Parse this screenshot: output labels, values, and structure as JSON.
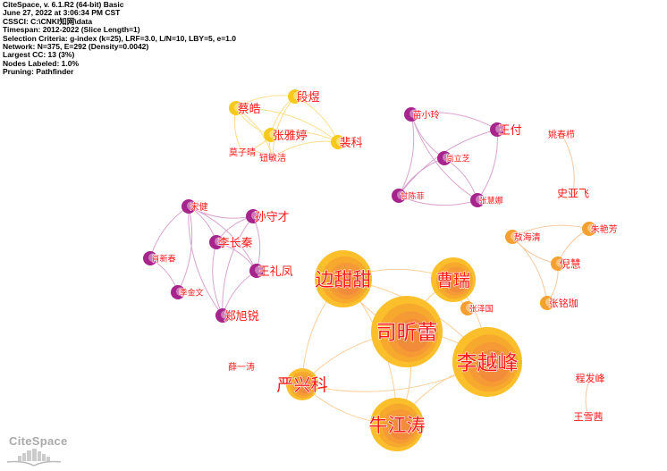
{
  "info": [
    "CiteSpace, v. 6.1.R2 (64-bit) Basic",
    "June 27, 2022 at 3:06:34 PM CST",
    "CSSCI: C:\\CNKI知网\\data",
    "Timespan: 2012-2022 (Slice Length=1)",
    "Selection Criteria: g-index (k=25), LRF=3.0, L/N=10, LBY=5, e=1.0",
    "Network: N=375, E=292 (Density=0.0042)",
    "Largest CC: 13 (3%)",
    "Nodes Labeled: 1.0%",
    "Pruning: Pathfinder"
  ],
  "logo": "CiteSpace",
  "colors": {
    "yellow": "#f7c91c",
    "purple": "#a6248c",
    "orange": "#f6a030",
    "label": "#ff1a1a",
    "big_outer": "#fbbf2c",
    "big_inner": "#f28c3a"
  },
  "nodes": [
    {
      "name": "蔡皓",
      "group": "yellow",
      "size": "small"
    },
    {
      "name": "段煜",
      "group": "yellow",
      "size": "small"
    },
    {
      "name": "张雅婷",
      "group": "yellow",
      "size": "small"
    },
    {
      "name": "裴科",
      "group": "yellow",
      "size": "small"
    },
    {
      "name": "莫子晴",
      "group": "yellow",
      "size": "none"
    },
    {
      "name": "钮敏洁",
      "group": "yellow",
      "size": "none"
    },
    {
      "name": "苗小玲",
      "group": "purple",
      "size": "small"
    },
    {
      "name": "王付",
      "group": "purple",
      "size": "small"
    },
    {
      "name": "尚立芝",
      "group": "purple",
      "size": "small"
    },
    {
      "name": "甘陈菲",
      "group": "purple",
      "size": "small"
    },
    {
      "name": "张慧娜",
      "group": "purple",
      "size": "small"
    },
    {
      "name": "姚春栉",
      "group": "orange",
      "size": "none"
    },
    {
      "name": "史亚飞",
      "group": "orange",
      "size": "none"
    },
    {
      "name": "宋健",
      "group": "purple",
      "size": "small"
    },
    {
      "name": "孙守才",
      "group": "purple",
      "size": "small"
    },
    {
      "name": "李长秦",
      "group": "purple",
      "size": "small"
    },
    {
      "name": "肖新春",
      "group": "purple",
      "size": "small"
    },
    {
      "name": "王礼凤",
      "group": "purple",
      "size": "small"
    },
    {
      "name": "季金文",
      "group": "purple",
      "size": "small"
    },
    {
      "name": "郑旭锐",
      "group": "purple",
      "size": "small"
    },
    {
      "name": "薛一涛",
      "group": "orange",
      "size": "none"
    },
    {
      "name": "敖海清",
      "group": "orange",
      "size": "small"
    },
    {
      "name": "朱艳芳",
      "group": "orange",
      "size": "small"
    },
    {
      "name": "倪慧",
      "group": "orange",
      "size": "small"
    },
    {
      "name": "张铭珈",
      "group": "orange",
      "size": "small"
    },
    {
      "name": "程发峰",
      "group": "orange",
      "size": "none"
    },
    {
      "name": "王雪茜",
      "group": "orange",
      "size": "none"
    },
    {
      "name": "边甜甜",
      "group": "big",
      "size": "large"
    },
    {
      "name": "曹瑞",
      "group": "big",
      "size": "large"
    },
    {
      "name": "张泽国",
      "group": "orange",
      "size": "small"
    },
    {
      "name": "司昕蕾",
      "group": "big",
      "size": "large"
    },
    {
      "name": "李越峰",
      "group": "big",
      "size": "large"
    },
    {
      "name": "严兴科",
      "group": "big",
      "size": "medium"
    },
    {
      "name": "牛江涛",
      "group": "big",
      "size": "large"
    }
  ],
  "edges": [
    [
      "蔡皓",
      "段煜"
    ],
    [
      "蔡皓",
      "张雅婷"
    ],
    [
      "蔡皓",
      "裴科"
    ],
    [
      "蔡皓",
      "莫子晴"
    ],
    [
      "蔡皓",
      "钮敏洁"
    ],
    [
      "段煜",
      "张雅婷"
    ],
    [
      "段煜",
      "裴科"
    ],
    [
      "段煜",
      "钮敏洁"
    ],
    [
      "张雅婷",
      "裴科"
    ],
    [
      "张雅婷",
      "钮敏洁"
    ],
    [
      "张雅婷",
      "莫子晴"
    ],
    [
      "裴科",
      "钮敏洁"
    ],
    [
      "莫子晴",
      "钮敏洁"
    ],
    [
      "苗小玲",
      "尚立芝"
    ],
    [
      "苗小玲",
      "甘陈菲"
    ],
    [
      "苗小玲",
      "张慧娜"
    ],
    [
      "苗小玲",
      "王付"
    ],
    [
      "王付",
      "甘陈菲"
    ],
    [
      "王付",
      "张慧娜"
    ],
    [
      "尚立芝",
      "甘陈菲"
    ],
    [
      "尚立芝",
      "张慧娜"
    ],
    [
      "甘陈菲",
      "张慧娜"
    ],
    [
      "姚春栉",
      "史亚飞"
    ],
    [
      "宋健",
      "孙守才"
    ],
    [
      "宋健",
      "李长秦"
    ],
    [
      "宋健",
      "肖新春"
    ],
    [
      "宋健",
      "季金文"
    ],
    [
      "宋健",
      "郑旭锐"
    ],
    [
      "宋健",
      "王礼凤"
    ],
    [
      "孙守才",
      "李长秦"
    ],
    [
      "孙守才",
      "王礼凤"
    ],
    [
      "孙守才",
      "郑旭锐"
    ],
    [
      "李长秦",
      "王礼凤"
    ],
    [
      "李长秦",
      "郑旭锐"
    ],
    [
      "肖新春",
      "季金文"
    ],
    [
      "王礼凤",
      "郑旭锐"
    ],
    [
      "敖海清",
      "朱艳芳"
    ],
    [
      "敖海清",
      "倪慧"
    ],
    [
      "敖海清",
      "张铭珈"
    ],
    [
      "朱艳芳",
      "倪慧"
    ],
    [
      "倪慧",
      "张铭珈"
    ],
    [
      "程发峰",
      "王雪茜"
    ],
    [
      "边甜甜",
      "曹瑞"
    ],
    [
      "边甜甜",
      "司昕蕾"
    ],
    [
      "边甜甜",
      "李越峰"
    ],
    [
      "边甜甜",
      "严兴科"
    ],
    [
      "边甜甜",
      "牛江涛"
    ],
    [
      "曹瑞",
      "司昕蕾"
    ],
    [
      "曹瑞",
      "李越峰"
    ],
    [
      "曹瑞",
      "张泽国"
    ],
    [
      "司昕蕾",
      "李越峰"
    ],
    [
      "司昕蕾",
      "严兴科"
    ],
    [
      "司昕蕾",
      "牛江涛"
    ],
    [
      "李越峰",
      "牛江涛"
    ],
    [
      "李越峰",
      "严兴科"
    ],
    [
      "严兴科",
      "牛江涛"
    ]
  ]
}
